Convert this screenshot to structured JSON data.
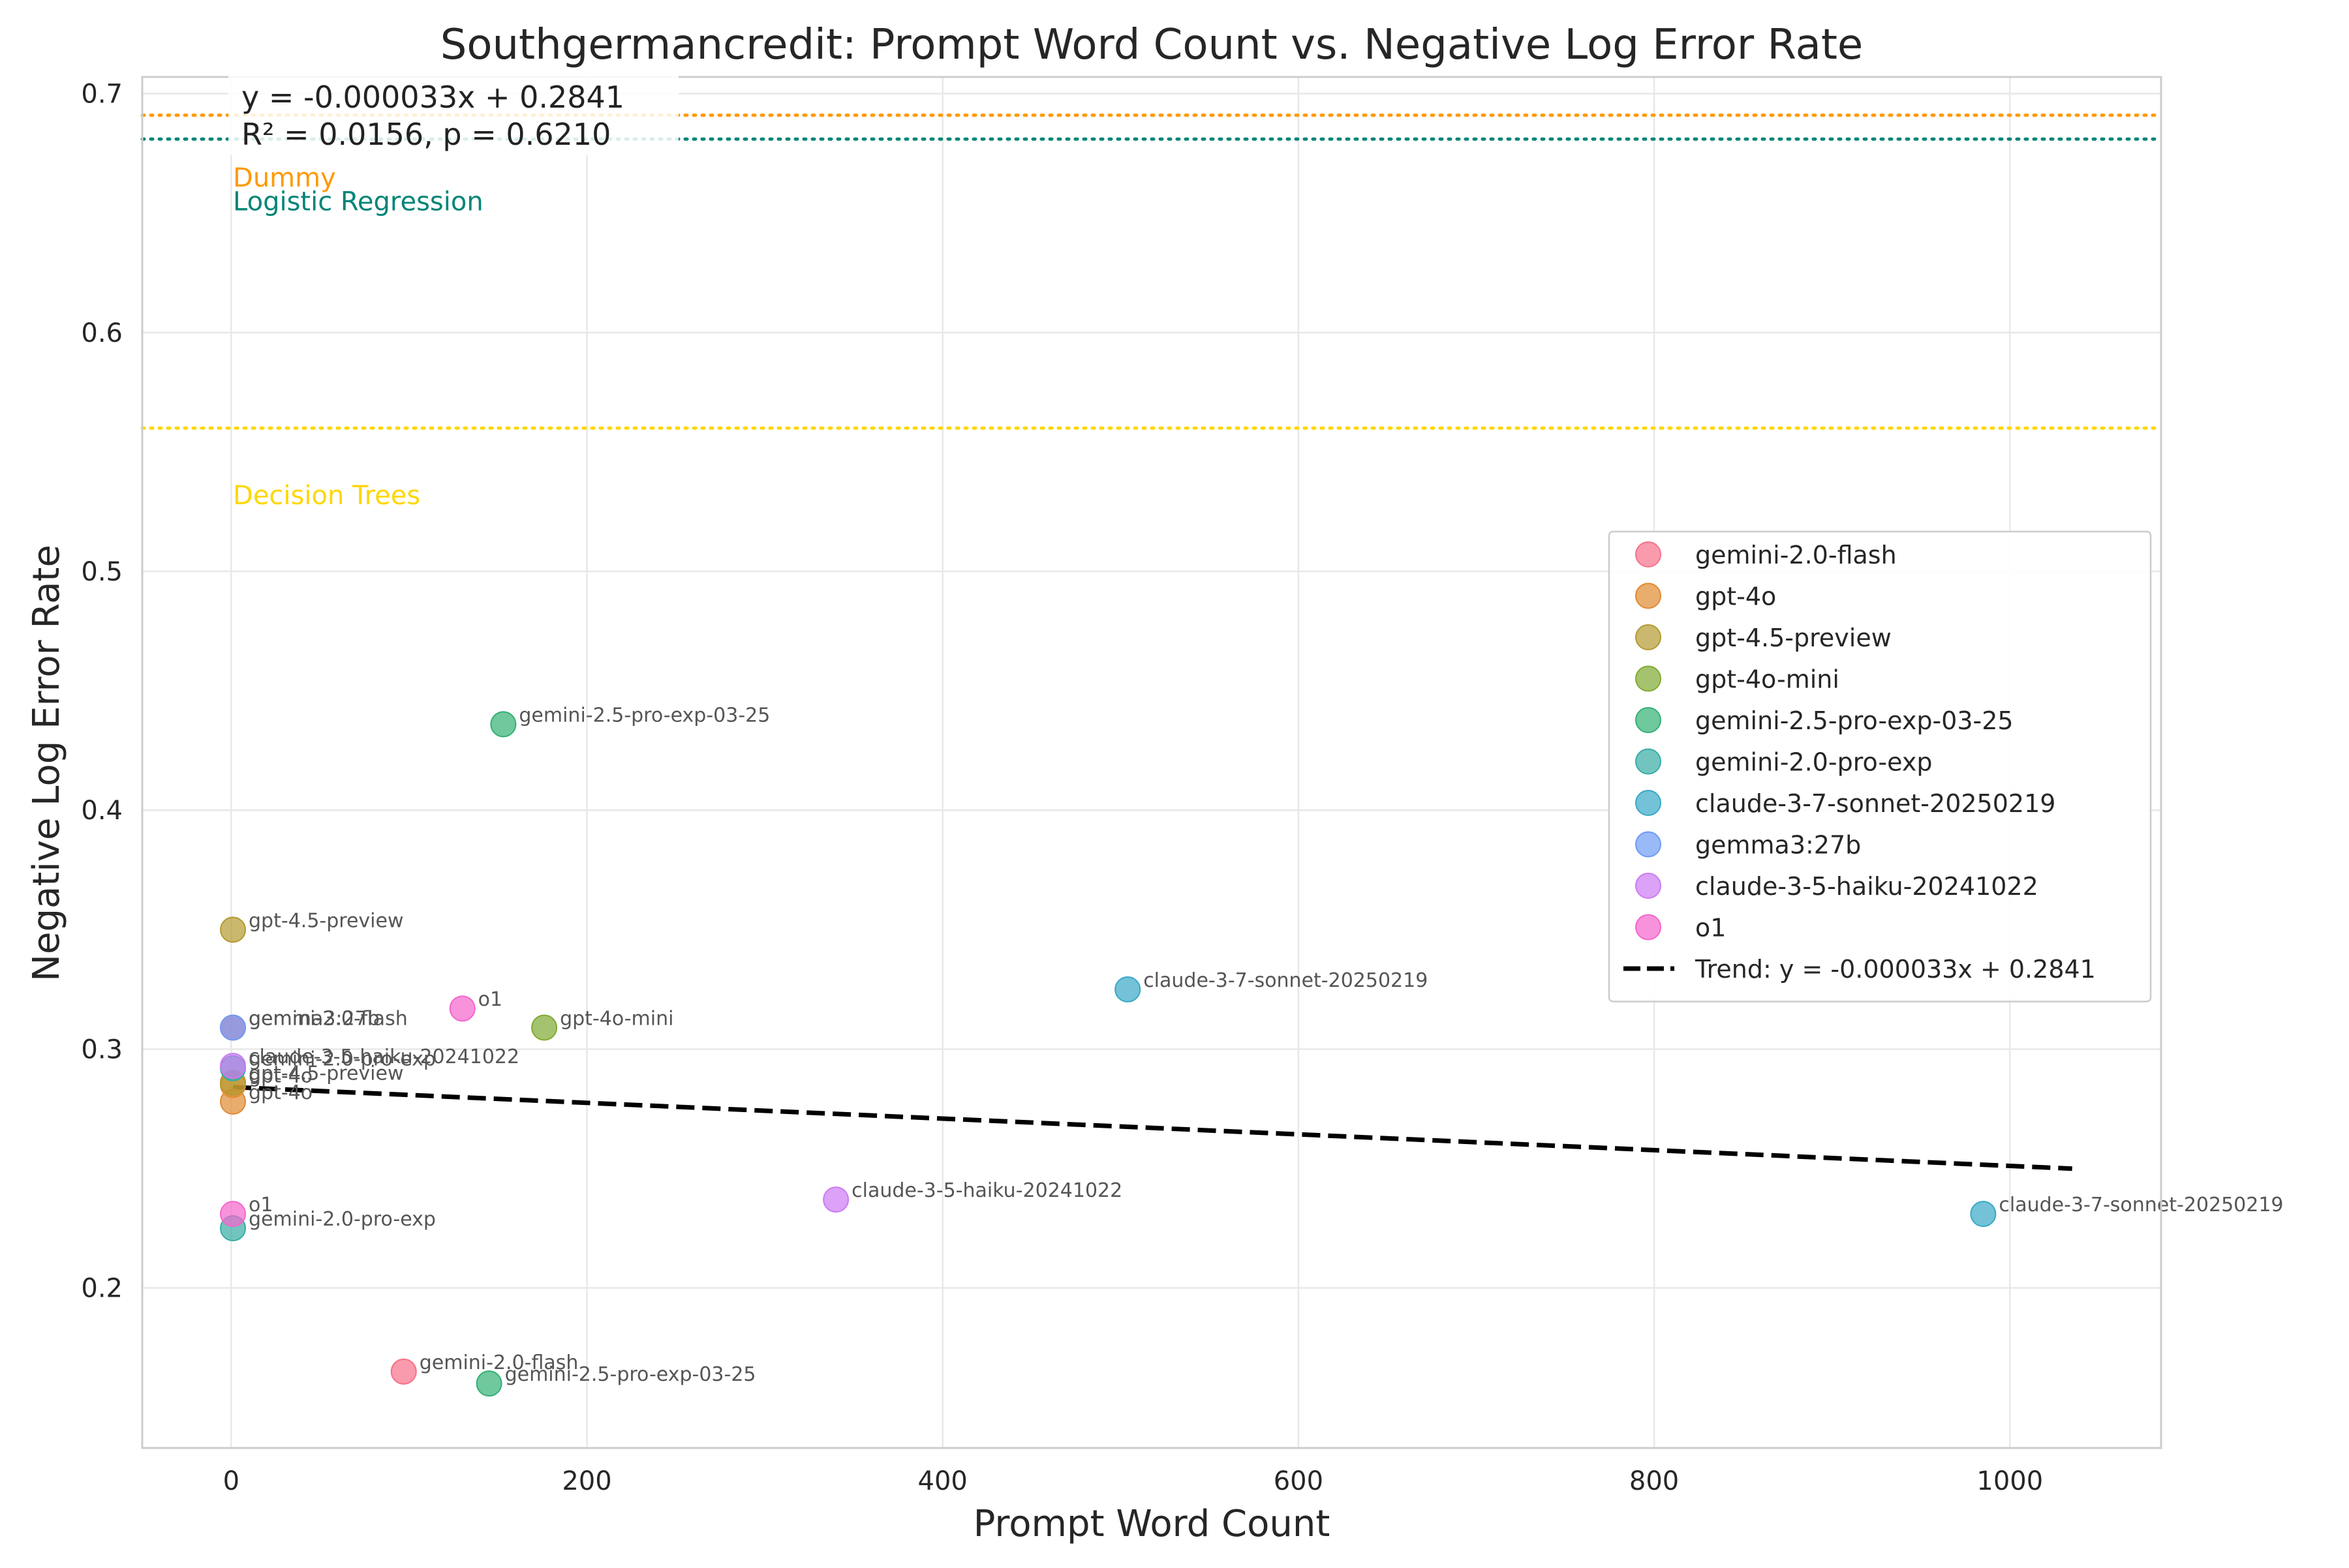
{
  "chart_data": {
    "type": "scatter",
    "title": "Southgermancredit: Prompt Word Count vs. Negative Log Error Rate",
    "xlabel": "Prompt Word Count",
    "ylabel": "Negative Log Error Rate",
    "xlim": [
      -50,
      1085
    ],
    "ylim": [
      0.133,
      0.707
    ],
    "xticks": [
      0,
      200,
      400,
      600,
      800,
      1000
    ],
    "yticks": [
      0.2,
      0.3,
      0.4,
      0.5,
      0.6,
      0.7
    ],
    "xtick_labels": [
      "0",
      "200",
      "400",
      "600",
      "800",
      "1000"
    ],
    "ytick_labels": [
      "0.2",
      "0.3",
      "0.4",
      "0.5",
      "0.6",
      "0.7"
    ],
    "grid": true,
    "legend_position": "center-right",
    "series": [
      {
        "name": "gemini-2.0-flash",
        "color": "#f77189",
        "points": [
          {
            "x": 1,
            "y": 0.309,
            "label": "gemini-2.0-flash"
          },
          {
            "x": 97,
            "y": 0.165,
            "label": "gemini-2.0-flash"
          }
        ]
      },
      {
        "name": "gpt-4o",
        "color": "#e08a31",
        "points": [
          {
            "x": 1,
            "y": 0.285,
            "label": "gpt-4o"
          },
          {
            "x": 1,
            "y": 0.278,
            "label": "gpt-4o"
          }
        ]
      },
      {
        "name": "gpt-4.5-preview",
        "color": "#b39a30",
        "points": [
          {
            "x": 1,
            "y": 0.35,
            "label": "gpt-4.5-preview"
          },
          {
            "x": 1,
            "y": 0.286,
            "label": "gpt-4.5-preview"
          }
        ]
      },
      {
        "name": "gpt-4o-mini",
        "color": "#7faa31",
        "points": [
          {
            "x": 176,
            "y": 0.309,
            "label": "gpt-4o-mini"
          }
        ]
      },
      {
        "name": "gemini-2.5-pro-exp-03-25",
        "color": "#33b074",
        "points": [
          {
            "x": 153,
            "y": 0.436,
            "label": "gemini-2.5-pro-exp-03-25"
          },
          {
            "x": 145,
            "y": 0.16,
            "label": "gemini-2.5-pro-exp-03-25"
          }
        ]
      },
      {
        "name": "gemini-2.0-pro-exp",
        "color": "#36ada4",
        "points": [
          {
            "x": 1,
            "y": 0.292,
            "label": "gemini-2.0-pro-exp"
          },
          {
            "x": 1,
            "y": 0.225,
            "label": "gemini-2.0-pro-exp"
          }
        ]
      },
      {
        "name": "claude-3-7-sonnet-20250219",
        "color": "#38a8c6",
        "points": [
          {
            "x": 504,
            "y": 0.325,
            "label": "claude-3-7-sonnet-20250219"
          },
          {
            "x": 985,
            "y": 0.231,
            "label": "claude-3-7-sonnet-20250219"
          }
        ]
      },
      {
        "name": "gemma3:27b",
        "color": "#6e9bf4",
        "points": [
          {
            "x": 1,
            "y": 0.309,
            "label": "gemma3:27b"
          }
        ]
      },
      {
        "name": "claude-3-5-haiku-20241022",
        "color": "#cc7af4",
        "points": [
          {
            "x": 1,
            "y": 0.293,
            "label": "claude-3-5-haiku-20241022"
          },
          {
            "x": 340,
            "y": 0.237,
            "label": "claude-3-5-haiku-20241022"
          }
        ]
      },
      {
        "name": "o1",
        "color": "#f565cc",
        "points": [
          {
            "x": 130,
            "y": 0.317,
            "label": "o1"
          },
          {
            "x": 1,
            "y": 0.231,
            "label": "o1"
          }
        ]
      }
    ],
    "trend": {
      "name": "Trend: y = -0.000033x + 0.2841",
      "slope": -3.3e-05,
      "intercept": 0.2841,
      "x_range": [
        1,
        1035
      ],
      "style": "dashed",
      "color": "#000000"
    },
    "reference_lines": [
      {
        "label": "Dummy",
        "y": 0.691,
        "color": "#ff9900",
        "label_y": 0.665
      },
      {
        "label": "Logistic Regression",
        "y": 0.681,
        "color": "#008577",
        "label_y": 0.655
      },
      {
        "label": "Decision Trees",
        "y": 0.56,
        "color": "#ffd700",
        "label_y": 0.532
      }
    ],
    "annotation": {
      "lines": [
        "y = -0.000033x + 0.2841",
        "R² = 0.0156, p = 0.6210"
      ]
    }
  }
}
